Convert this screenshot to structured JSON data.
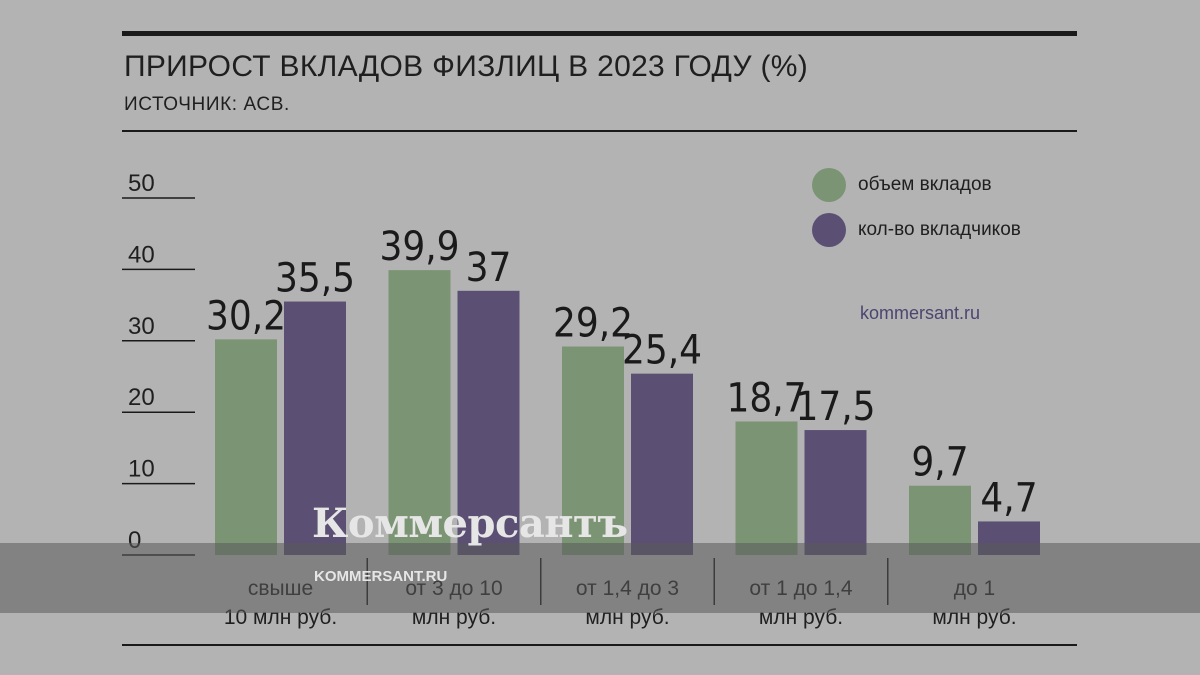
{
  "header": {
    "title": "ПРИРОСТ ВКЛАДОВ ФИЗЛИЦ В 2023 ГОДУ (%)",
    "subtitle": "ИСТОЧНИК: АСВ."
  },
  "site_label": "kommersant.ru",
  "watermark": {
    "logo": "Коммерсантъ",
    "url": "KOMMERSANT.RU"
  },
  "colors": {
    "series_volume": "#7b9473",
    "series_count": "#5b5073",
    "background": "#b3b3b3"
  },
  "chart_data": {
    "type": "bar",
    "title": "ПРИРОСТ ВКЛАДОВ ФИЗЛИЦ В 2023 ГОДУ (%)",
    "categories": [
      [
        "свыше",
        "10 млн руб."
      ],
      [
        "от 3 до 10",
        "млн руб."
      ],
      [
        "от 1,4 до 3",
        "млн руб."
      ],
      [
        "от 1 до 1,4",
        "млн руб."
      ],
      [
        "до 1",
        "млн руб."
      ]
    ],
    "series": [
      {
        "name": "объем вкладов",
        "values": [
          30.2,
          39.9,
          29.2,
          18.7,
          9.7
        ],
        "labels": [
          "30,2",
          "39,9",
          "29,2",
          "18,7",
          "9,7"
        ]
      },
      {
        "name": "кол-во вкладчиков",
        "values": [
          35.5,
          37,
          25.4,
          17.5,
          4.7
        ],
        "labels": [
          "35,5",
          "37",
          "25,4",
          "17,5",
          "4,7"
        ]
      }
    ],
    "y_ticks": [
      "0",
      "10",
      "20",
      "30",
      "40",
      "50"
    ],
    "ylim": [
      0,
      50
    ],
    "legend_position": "top-right",
    "grid": false
  }
}
